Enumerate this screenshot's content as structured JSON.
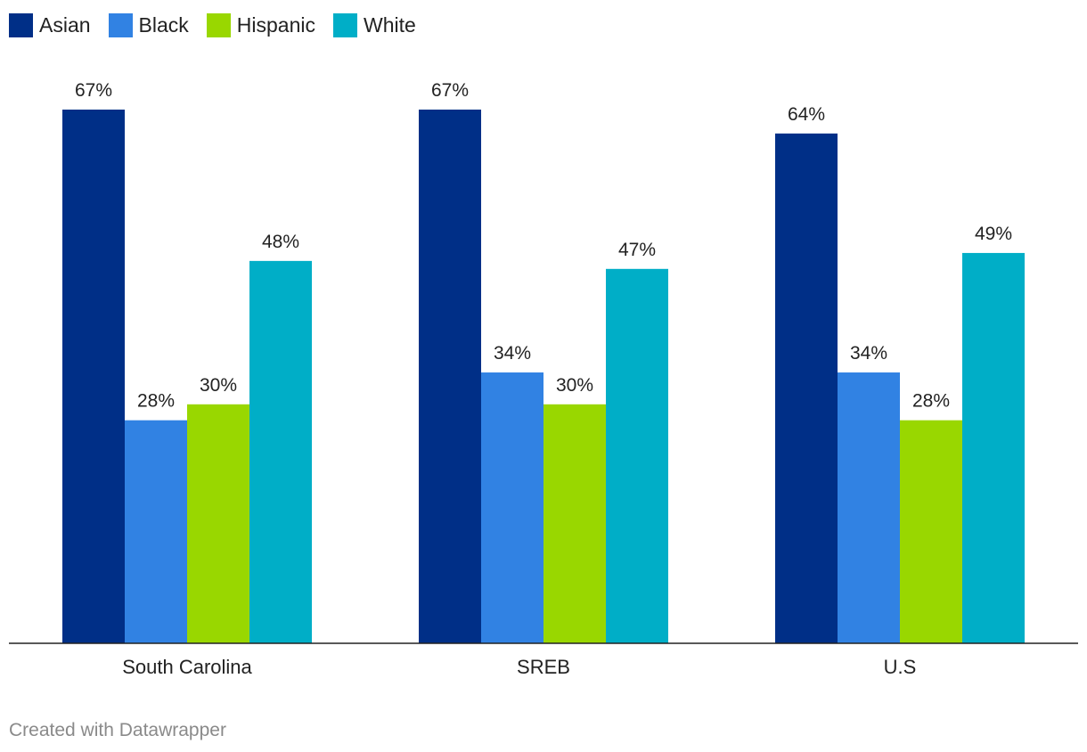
{
  "chart_data": {
    "type": "bar",
    "categories": [
      "South Carolina",
      "SREB",
      "U.S"
    ],
    "series": [
      {
        "name": "Asian",
        "color": "#002f87",
        "values": [
          67,
          67,
          64
        ],
        "labels": [
          "67%",
          "67%",
          "64%"
        ]
      },
      {
        "name": "Black",
        "color": "#3182e3",
        "values": [
          28,
          34,
          34
        ],
        "labels": [
          "28%",
          "34%",
          "34%"
        ]
      },
      {
        "name": "Hispanic",
        "color": "#99d700",
        "values": [
          30,
          30,
          28
        ],
        "labels": [
          "30%",
          "30%",
          "28%"
        ]
      },
      {
        "name": "White",
        "color": "#00aec7",
        "values": [
          48,
          47,
          49
        ],
        "labels": [
          "48%",
          "47%",
          "49%"
        ]
      }
    ],
    "ylim": [
      0,
      67
    ],
    "value_suffix": "%",
    "legend_position": "top-left",
    "grid": false
  },
  "footer": {
    "credit": "Created with Datawrapper"
  }
}
